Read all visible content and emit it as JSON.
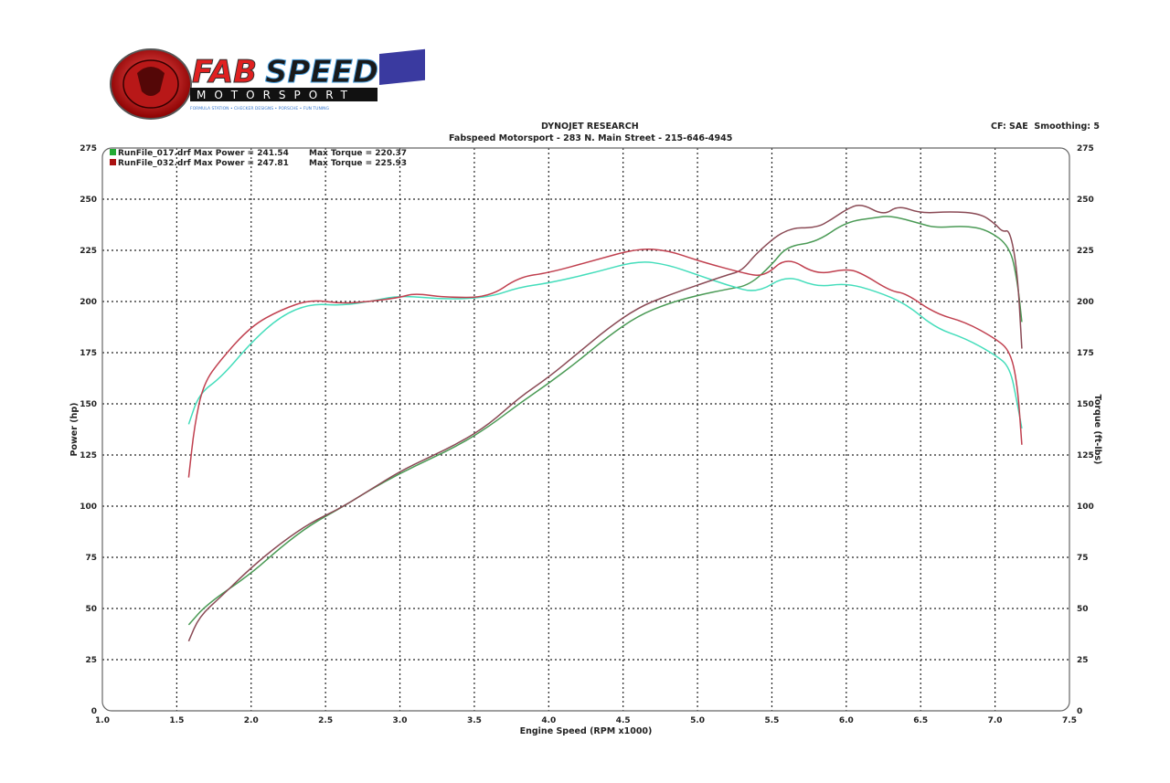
{
  "logo": {
    "brand": "FABSPEED",
    "sub": "MOTORSPORT",
    "tagline": "FORMULA STATION • CHECKER DESIGNS • PORSCHE • FUN TUNING"
  },
  "header": {
    "title": "DYNOJET RESEARCH",
    "subtitle": "Fabspeed Motorsport - 283 N. Main Street - 215-646-4945",
    "settings": "CF: SAE  Smoothing: 5"
  },
  "chart_data": {
    "type": "line",
    "xlabel": "Engine Speed (RPM x1000)",
    "ylabel": "Power (hp)",
    "y2label": "Torque (ft-lbs)",
    "xlim": [
      1.0,
      7.5
    ],
    "ylim": [
      0,
      275
    ],
    "y2lim": [
      0,
      275
    ],
    "xticks": [
      "1.0",
      "1.5",
      "2.0",
      "2.5",
      "3.0",
      "3.5",
      "4.0",
      "4.5",
      "5.0",
      "5.5",
      "6.0",
      "6.5",
      "7.0",
      "7.5"
    ],
    "yticks": [
      "0",
      "25",
      "50",
      "75",
      "100",
      "125",
      "150",
      "175",
      "200",
      "225",
      "250",
      "275"
    ],
    "grid": true,
    "legend_placement": "top-left",
    "legend": [
      {
        "label": "RunFile_017.drf Max Power = 241.54",
        "torque": "Max Torque = 220.37",
        "color": "#22aa33"
      },
      {
        "label": "RunFile_032.drf Max Power = 247.81",
        "torque": "Max Torque = 225.93",
        "color": "#aa1111"
      }
    ],
    "series": [
      {
        "run": "RunFile_017.drf",
        "kind": "power",
        "color": "#4a9a55",
        "points": [
          [
            1.58,
            42
          ],
          [
            1.7,
            52
          ],
          [
            2.0,
            67
          ],
          [
            2.2,
            80
          ],
          [
            2.4,
            91
          ],
          [
            2.6,
            99
          ],
          [
            2.8,
            108
          ],
          [
            3.0,
            116
          ],
          [
            3.2,
            123
          ],
          [
            3.4,
            130
          ],
          [
            3.6,
            139
          ],
          [
            3.8,
            150
          ],
          [
            4.0,
            160
          ],
          [
            4.2,
            171
          ],
          [
            4.4,
            183
          ],
          [
            4.6,
            193
          ],
          [
            4.8,
            199
          ],
          [
            5.0,
            203
          ],
          [
            5.2,
            206
          ],
          [
            5.35,
            208
          ],
          [
            5.5,
            218
          ],
          [
            5.6,
            227
          ],
          [
            5.8,
            229
          ],
          [
            6.0,
            239
          ],
          [
            6.2,
            241
          ],
          [
            6.3,
            242
          ],
          [
            6.5,
            238
          ],
          [
            6.6,
            236
          ],
          [
            6.8,
            237
          ],
          [
            6.95,
            235
          ],
          [
            7.1,
            227
          ],
          [
            7.15,
            210
          ],
          [
            7.18,
            190
          ]
        ]
      },
      {
        "run": "RunFile_017.drf",
        "kind": "torque",
        "color": "#44ddbb",
        "points": [
          [
            1.58,
            140
          ],
          [
            1.65,
            155
          ],
          [
            1.8,
            163
          ],
          [
            2.0,
            180
          ],
          [
            2.2,
            193
          ],
          [
            2.4,
            199
          ],
          [
            2.6,
            198
          ],
          [
            2.8,
            200
          ],
          [
            3.0,
            203
          ],
          [
            3.3,
            201
          ],
          [
            3.6,
            202
          ],
          [
            3.8,
            207
          ],
          [
            4.0,
            209
          ],
          [
            4.3,
            214
          ],
          [
            4.6,
            220
          ],
          [
            4.8,
            218
          ],
          [
            5.0,
            213
          ],
          [
            5.2,
            208
          ],
          [
            5.4,
            204
          ],
          [
            5.6,
            213
          ],
          [
            5.8,
            207
          ],
          [
            6.0,
            209
          ],
          [
            6.2,
            205
          ],
          [
            6.4,
            199
          ],
          [
            6.6,
            187
          ],
          [
            6.8,
            182
          ],
          [
            7.0,
            174
          ],
          [
            7.1,
            168
          ],
          [
            7.15,
            150
          ],
          [
            7.18,
            138
          ]
        ]
      },
      {
        "run": "RunFile_032.drf",
        "kind": "power",
        "color": "#8a4a55",
        "points": [
          [
            1.58,
            34
          ],
          [
            1.65,
            46
          ],
          [
            1.8,
            56
          ],
          [
            2.0,
            70
          ],
          [
            2.2,
            82
          ],
          [
            2.4,
            92
          ],
          [
            2.6,
            99
          ],
          [
            2.8,
            108
          ],
          [
            3.0,
            117
          ],
          [
            3.2,
            124
          ],
          [
            3.4,
            131
          ],
          [
            3.6,
            140
          ],
          [
            3.8,
            153
          ],
          [
            4.0,
            163
          ],
          [
            4.2,
            175
          ],
          [
            4.4,
            187
          ],
          [
            4.6,
            197
          ],
          [
            4.8,
            203
          ],
          [
            5.0,
            208
          ],
          [
            5.2,
            213
          ],
          [
            5.3,
            215
          ],
          [
            5.4,
            224
          ],
          [
            5.6,
            236
          ],
          [
            5.8,
            236
          ],
          [
            5.9,
            240
          ],
          [
            6.0,
            245
          ],
          [
            6.1,
            248
          ],
          [
            6.25,
            242
          ],
          [
            6.35,
            247
          ],
          [
            6.5,
            243
          ],
          [
            6.7,
            244
          ],
          [
            6.9,
            243
          ],
          [
            7.0,
            238
          ],
          [
            7.05,
            234
          ],
          [
            7.1,
            235
          ],
          [
            7.15,
            215
          ],
          [
            7.18,
            177
          ]
        ]
      },
      {
        "run": "RunFile_032.drf",
        "kind": "torque",
        "color": "#c0404f",
        "points": [
          [
            1.58,
            114
          ],
          [
            1.62,
            140
          ],
          [
            1.68,
            160
          ],
          [
            1.8,
            172
          ],
          [
            2.0,
            188
          ],
          [
            2.2,
            196
          ],
          [
            2.4,
            201
          ],
          [
            2.6,
            199
          ],
          [
            2.8,
            200
          ],
          [
            3.0,
            202
          ],
          [
            3.1,
            204
          ],
          [
            3.3,
            202
          ],
          [
            3.6,
            202
          ],
          [
            3.8,
            212
          ],
          [
            4.0,
            214
          ],
          [
            4.3,
            220
          ],
          [
            4.6,
            226
          ],
          [
            4.8,
            225
          ],
          [
            5.0,
            220
          ],
          [
            5.3,
            214
          ],
          [
            5.45,
            212
          ],
          [
            5.6,
            222
          ],
          [
            5.8,
            213
          ],
          [
            6.0,
            216
          ],
          [
            6.1,
            214
          ],
          [
            6.3,
            205
          ],
          [
            6.4,
            204
          ],
          [
            6.6,
            194
          ],
          [
            6.8,
            190
          ],
          [
            7.0,
            182
          ],
          [
            7.1,
            176
          ],
          [
            7.15,
            160
          ],
          [
            7.18,
            130
          ]
        ]
      }
    ]
  }
}
